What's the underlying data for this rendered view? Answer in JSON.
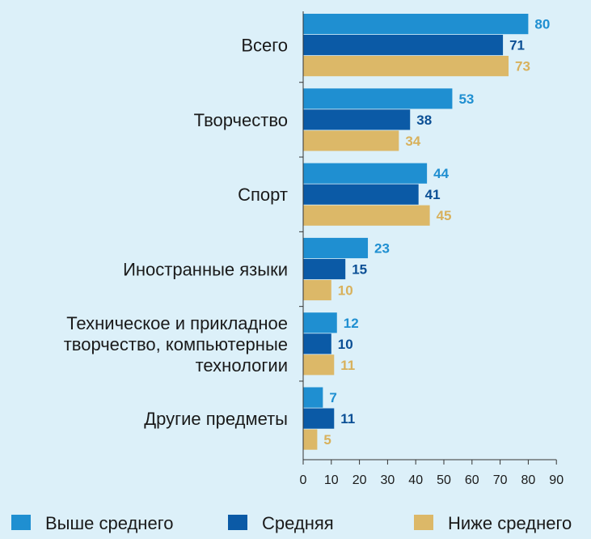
{
  "chart_data": {
    "type": "bar",
    "orientation": "horizontal",
    "categories": [
      [
        "Всего"
      ],
      [
        "Творчество"
      ],
      [
        "Спорт"
      ],
      [
        "Иностранные языки"
      ],
      [
        "Техническое и прикладное",
        "творчество, компьютерные",
        "технологии"
      ],
      [
        "Другие предметы"
      ]
    ],
    "series": [
      {
        "name": "Выше среднего",
        "values": [
          80,
          53,
          44,
          23,
          12,
          7
        ],
        "color": "#1f8fd1",
        "label_color": "#1f8fd1"
      },
      {
        "name": "Средняя",
        "values": [
          71,
          38,
          41,
          15,
          10,
          11
        ],
        "color": "#0b5aa6",
        "label_color": "#0b4f95"
      },
      {
        "name": "Ниже среднего",
        "values": [
          73,
          34,
          45,
          10,
          11,
          5
        ],
        "color": "#dcb868",
        "label_color": "#d8b15c"
      }
    ],
    "xlim": [
      0,
      90
    ],
    "xticks": [
      0,
      10,
      20,
      30,
      40,
      50,
      60,
      70,
      80,
      90
    ],
    "legend_position": "bottom",
    "title": "",
    "xlabel": "",
    "ylabel": ""
  }
}
